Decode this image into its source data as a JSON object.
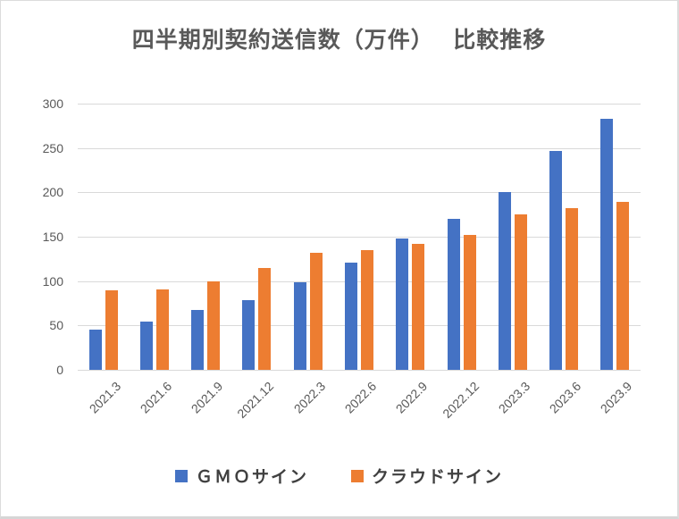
{
  "chart_data": {
    "type": "bar",
    "title": "四半期別契約送信数（万件）　 比較推移",
    "categories": [
      "2021.3",
      "2021.6",
      "2021.9",
      "2021.12",
      "2022.3",
      "2022.6",
      "2022.9",
      "2022.12",
      "2023.3",
      "2023.6",
      "2023.9"
    ],
    "series": [
      {
        "name": "ＧＭＯサイン",
        "key": "gmo-sign",
        "color": "#4472C4",
        "values": [
          45,
          54,
          67,
          79,
          99,
          121,
          148,
          170,
          200,
          247,
          283
        ]
      },
      {
        "name": "クラウドサイン",
        "key": "cloudsign",
        "color": "#ED7D31",
        "values": [
          90,
          91,
          100,
          115,
          132,
          135,
          142,
          152,
          175,
          182,
          189
        ]
      }
    ],
    "xlabel": "",
    "ylabel": "",
    "ylim": [
      0,
      300
    ],
    "ytick_step": 50,
    "grid": true,
    "legend_position": "bottom"
  },
  "colors": {
    "background": "#FFFFFF",
    "gridline": "#D9D9D9",
    "axis_text": "#595959",
    "title_text": "#595959",
    "legend_text": "#404040"
  }
}
